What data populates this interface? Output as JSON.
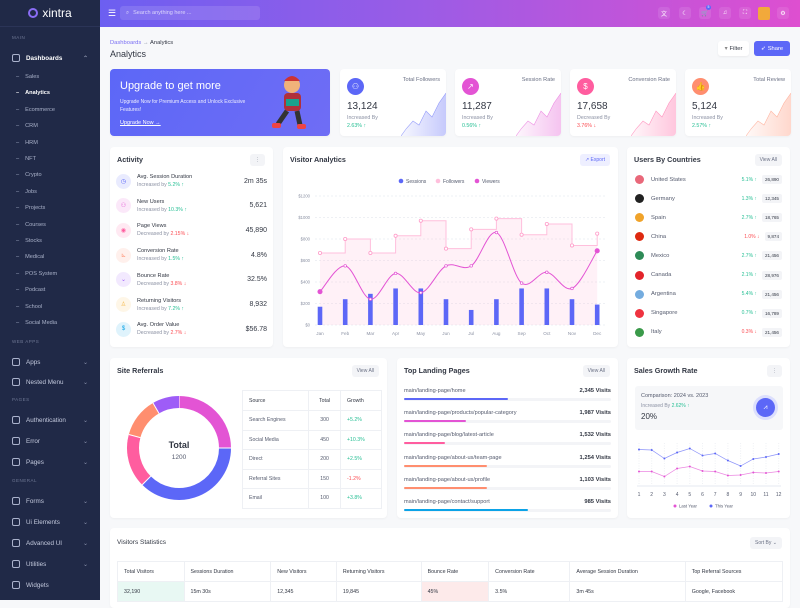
{
  "brand": "xintra",
  "sidebar": {
    "sections": [
      {
        "label": "MAIN"
      },
      {
        "label": "WEB APPS"
      },
      {
        "label": "PAGES"
      },
      {
        "label": "GENERAL"
      }
    ],
    "dashboards": "Dashboards",
    "sub_items": [
      "Sales",
      "Analytics",
      "Ecommerce",
      "CRM",
      "HRM",
      "NFT",
      "Crypto",
      "Jobs",
      "Projects",
      "Courses",
      "Stocks",
      "Medical",
      "POS System",
      "Podcast",
      "School",
      "Social Media"
    ],
    "active_sub": "Analytics",
    "items": [
      {
        "label": "Apps",
        "icon": "apps-icon"
      },
      {
        "label": "Nested Menu",
        "icon": "nested-menu-icon"
      },
      {
        "label": "Authentication",
        "icon": "lock-icon"
      },
      {
        "label": "Error",
        "icon": "warning-icon"
      },
      {
        "label": "Pages",
        "icon": "pages-icon"
      },
      {
        "label": "Forms",
        "icon": "clipboard-icon"
      },
      {
        "label": "Ui Elements",
        "icon": "box-icon"
      },
      {
        "label": "Advanced UI",
        "icon": "layers-icon"
      },
      {
        "label": "Utilities",
        "icon": "inbox-icon"
      },
      {
        "label": "Widgets",
        "icon": "gift-icon"
      }
    ]
  },
  "header": {
    "search_placeholder": "Search anything here ...",
    "cart_badge": "5"
  },
  "page": {
    "breadcrumb_root": "Dashboards",
    "breadcrumb_current": "Analytics",
    "title": "Analytics",
    "filter": "Filter",
    "share": "Share"
  },
  "banner": {
    "title": "Upgrade to get more",
    "text": "Upgrade Now for Premium Access and Unlock Exclusive Features!",
    "link": "Upgrade Now →"
  },
  "stats": [
    {
      "label": "Total Followers",
      "value": "13,124",
      "sub": "Increased By",
      "change": "2.63%",
      "dir": "up",
      "color": "#5c67f7",
      "icon": "users-icon"
    },
    {
      "label": "Session Rate",
      "value": "11,287",
      "sub": "Increased By",
      "change": "0.56%",
      "dir": "up",
      "color": "#e354d4",
      "icon": "trend-icon"
    },
    {
      "label": "Conversion Rate",
      "value": "17,658",
      "sub": "Decreased By",
      "change": "3.76%",
      "dir": "down",
      "color": "#ff5d9f",
      "icon": "dollar-icon"
    },
    {
      "label": "Total Review",
      "value": "5,124",
      "sub": "Increased By",
      "change": "2.57%",
      "dir": "up",
      "color": "#ff8e6f",
      "icon": "thumbs-up-icon"
    }
  ],
  "activity": {
    "title": "Activity",
    "rows": [
      {
        "title": "Avg. Session Duration",
        "sub": "Increased by",
        "change": "5.2%",
        "dir": "up",
        "value": "2m 35s",
        "color": "#5c67f7",
        "icon": "clock-icon"
      },
      {
        "title": "New Users",
        "sub": "Increased by",
        "change": "10.3%",
        "dir": "up",
        "value": "5,621",
        "color": "#e354d4",
        "icon": "user-icon"
      },
      {
        "title": "Page Views",
        "sub": "Decreased by",
        "change": "2.15%",
        "dir": "down",
        "value": "45,890",
        "color": "#ff5d9f",
        "icon": "eye-icon"
      },
      {
        "title": "Conversion Rate",
        "sub": "Increased by",
        "change": "1.5%",
        "dir": "up",
        "value": "4.8%",
        "color": "#ff8e6f",
        "icon": "chart-icon"
      },
      {
        "title": "Bounce Rate",
        "sub": "Decreased by",
        "change": "3.8%",
        "dir": "down",
        "value": "32.5%",
        "color": "#9e5cf7",
        "icon": "chevron-down-icon"
      },
      {
        "title": "Returning Visitors",
        "sub": "Increased by",
        "change": "7.2%",
        "dir": "up",
        "value": "8,932",
        "color": "#f5b849",
        "icon": "user-return-icon"
      },
      {
        "title": "Avg. Order Value",
        "sub": "Decreased by",
        "change": "2.7%",
        "dir": "down",
        "value": "$56.78",
        "color": "#0ca3e7",
        "icon": "dollar-icon"
      }
    ]
  },
  "visitor_analytics": {
    "title": "Visitor Analytics",
    "export": "Export"
  },
  "chart_data": [
    {
      "type": "bar+line",
      "title": "Visitor Analytics",
      "categories": [
        "Jan",
        "Feb",
        "Mar",
        "Apr",
        "May",
        "Jun",
        "Jul",
        "Aug",
        "Sep",
        "Oct",
        "Nov",
        "Dec"
      ],
      "y_ticks": [
        "$0",
        "$200",
        "$400",
        "$600",
        "$800",
        "$1000",
        "$1200"
      ],
      "ylim": [
        0,
        1200
      ],
      "grid": true,
      "legend": "top",
      "series": [
        {
          "name": "Sessions",
          "type": "bar",
          "color": "#5c67f7",
          "values": [
            170,
            240,
            290,
            340,
            340,
            240,
            140,
            240,
            340,
            340,
            240,
            190
          ]
        },
        {
          "name": "Followers",
          "type": "stepline-area",
          "color": "#ffbfdc",
          "values": [
            670,
            800,
            670,
            830,
            970,
            710,
            890,
            990,
            840,
            940,
            740,
            850
          ]
        },
        {
          "name": "Viewers",
          "type": "smooth-line",
          "color": "#e354d4",
          "values": [
            310,
            550,
            240,
            480,
            300,
            550,
            550,
            860,
            390,
            490,
            340,
            690
          ]
        }
      ]
    },
    {
      "type": "pie",
      "title": "Site Referrals",
      "center_label": "Total",
      "center_value": "1200",
      "categories": [
        "Search Engines",
        "Social Media",
        "Direct",
        "Referral Sites",
        "Email"
      ],
      "values": [
        300,
        450,
        200,
        150,
        100
      ],
      "colors": [
        "#e354d4",
        "#5c67f7",
        "#ff5d9f",
        "#ff8e6f",
        "#9e5cf7"
      ]
    },
    {
      "type": "line",
      "title": "Sales Growth Rate",
      "categories": [
        "1",
        "2",
        "3",
        "4",
        "5",
        "6",
        "7",
        "8",
        "9",
        "10",
        "11",
        "12"
      ],
      "legend": "bottom",
      "series": [
        {
          "name": "Last Year",
          "color": "#e354d4",
          "values": [
            29,
            29,
            19,
            35,
            39,
            30,
            29,
            21,
            22,
            27,
            26,
            29
          ]
        },
        {
          "name": "This Year",
          "color": "#5c67f7",
          "values": [
            73,
            72,
            55,
            67,
            75,
            61,
            65,
            51,
            40,
            54,
            58,
            64
          ]
        }
      ]
    }
  ],
  "countries": {
    "title": "Users By Countries",
    "view_all": "View All",
    "rows": [
      {
        "name": "United States",
        "change": "5.1%",
        "dir": "up",
        "value": "26,890",
        "flag": "#e9687a"
      },
      {
        "name": "Germany",
        "change": "1.3%",
        "dir": "up",
        "value": "12,345",
        "flag": "#222"
      },
      {
        "name": "Spain",
        "change": "2.7%",
        "dir": "up",
        "value": "18,765",
        "flag": "#f0a32a"
      },
      {
        "name": "China",
        "change": "1.0%",
        "dir": "down",
        "value": "9,874",
        "flag": "#de2910"
      },
      {
        "name": "Mexico",
        "change": "2.7%",
        "dir": "up",
        "value": "21,456",
        "flag": "#2e8b57"
      },
      {
        "name": "Canada",
        "change": "2.1%",
        "dir": "up",
        "value": "28,976",
        "flag": "#e3242b"
      },
      {
        "name": "Argentina",
        "change": "5.4%",
        "dir": "up",
        "value": "21,456",
        "flag": "#74acdf"
      },
      {
        "name": "Singapore",
        "change": "0.7%",
        "dir": "up",
        "value": "16,789",
        "flag": "#ef3340"
      },
      {
        "name": "Italy",
        "change": "0.3%",
        "dir": "down",
        "value": "21,456",
        "flag": "#3a9a4a"
      }
    ]
  },
  "referrals": {
    "title": "Site Referrals",
    "view_all": "View All",
    "headers": [
      "Source",
      "Total",
      "Growth"
    ],
    "rows": [
      {
        "source": "Search Engines",
        "total": "300",
        "growth": "+5.2%",
        "dir": "up"
      },
      {
        "source": "Social Media",
        "total": "450",
        "growth": "+10.3%",
        "dir": "up"
      },
      {
        "source": "Direct",
        "total": "200",
        "growth": "+2.5%",
        "dir": "up"
      },
      {
        "source": "Referral Sites",
        "total": "150",
        "growth": "-1.2%",
        "dir": "down"
      },
      {
        "source": "Email",
        "total": "100",
        "growth": "+3.8%",
        "dir": "up"
      }
    ]
  },
  "landing": {
    "title": "Top Landing Pages",
    "view_all": "View All",
    "rows": [
      {
        "path": "main/landing-page/home",
        "visits": "2,345 Visits",
        "pct": 50,
        "color": "#5c67f7"
      },
      {
        "path": "main/landing-page/products/popular-category",
        "visits": "1,987 Visits",
        "pct": 30,
        "color": "#e354d4"
      },
      {
        "path": "main/landing-page/blog/latest-article",
        "visits": "1,532 Visits",
        "pct": 20,
        "color": "#ff5d9f"
      },
      {
        "path": "main/landing-page/about-us/team-page",
        "visits": "1,254 Visits",
        "pct": 40,
        "color": "#ff8e6f"
      },
      {
        "path": "main/landing-page/about-us/profile",
        "visits": "1,103 Visits",
        "pct": 40,
        "color": "#ff8e6f"
      },
      {
        "path": "main/landing-page/contact/support",
        "visits": "985 Visits",
        "pct": 60,
        "color": "#0ca3e7"
      }
    ]
  },
  "sales_growth": {
    "title": "Sales Growth Rate",
    "comparison": "Comparison: 2024 vs. 2023",
    "sub": "Increased By",
    "change": "2.62%",
    "value": "20%"
  },
  "visitors_stats": {
    "title": "Visitors Statistics",
    "sort": "Sort By",
    "headers": [
      "Total Visitors",
      "Sessions Duration",
      "New Visitors",
      "Returning Visitors",
      "Bounce Rate",
      "Conversion Rate",
      "Average Session Duration",
      "Top Referral Sources"
    ],
    "row": [
      "32,190",
      "15m 30s",
      "12,345",
      "19,845",
      "45%",
      "3.5%",
      "3m 45s",
      "Google, Facebook"
    ]
  }
}
